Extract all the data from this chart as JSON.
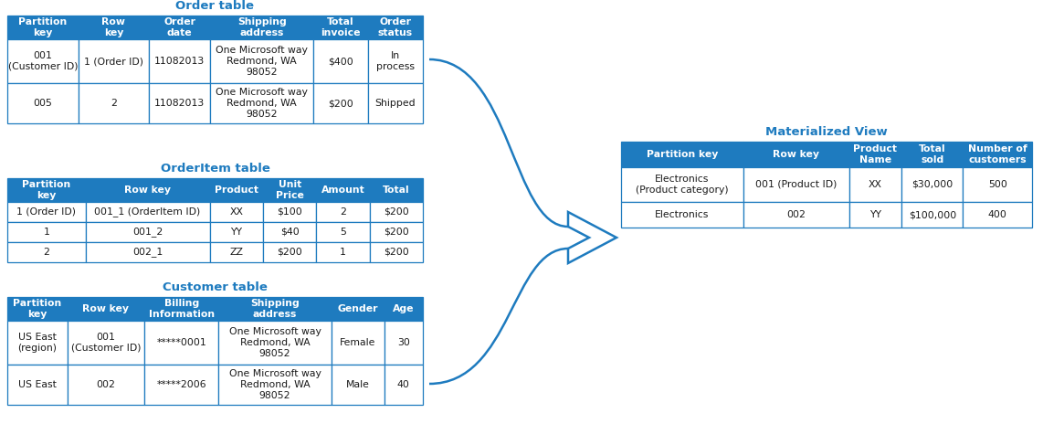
{
  "header_bg": "#1e7bbf",
  "header_text_color": "#ffffff",
  "cell_bg": "#ffffff",
  "cell_text_color": "#1a1a1a",
  "title_color": "#1e7bbf",
  "border_color": "#1e7bbf",
  "arrow_color": "#1e7bbf",
  "order_table_title": "Order table",
  "order_table_headers": [
    "Partition\nkey",
    "Row\nkey",
    "Order\ndate",
    "Shipping\naddress",
    "Total\ninvoice",
    "Order\nstatus"
  ],
  "order_table_rows": [
    [
      "001\n(Customer ID)",
      "1 (Order ID)",
      "11082013",
      "One Microsoft way\nRedmond, WA\n98052",
      "$400",
      "In\nprocess"
    ],
    [
      "005",
      "2",
      "11082013",
      "One Microsoft way\nRedmond, WA\n98052",
      "$200",
      "Shipped"
    ]
  ],
  "order_col_widths": [
    1.1,
    1.1,
    0.95,
    1.6,
    0.85,
    0.85
  ],
  "orderitem_table_title": "OrderItem table",
  "orderitem_table_headers": [
    "Partition\nkey",
    "Row key",
    "Product",
    "Unit\nPrice",
    "Amount",
    "Total"
  ],
  "orderitem_table_rows": [
    [
      "1 (Order ID)",
      "001_1 (OrderItem ID)",
      "XX",
      "$100",
      "2",
      "$200"
    ],
    [
      "1",
      "001_2",
      "YY",
      "$40",
      "5",
      "$200"
    ],
    [
      "2",
      "002_1",
      "ZZ",
      "$200",
      "1",
      "$200"
    ]
  ],
  "orderitem_col_widths": [
    1.1,
    1.75,
    0.75,
    0.75,
    0.75,
    0.75
  ],
  "customer_table_title": "Customer table",
  "customer_table_headers": [
    "Partition\nkey",
    "Row key",
    "Billing\nInformation",
    "Shipping\naddress",
    "Gender",
    "Age"
  ],
  "customer_table_rows": [
    [
      "US East\n(region)",
      "001\n(Customer ID)",
      "*****0001",
      "One Microsoft way\nRedmond, WA\n98052",
      "Female",
      "30"
    ],
    [
      "US East",
      "002",
      "*****2006",
      "One Microsoft way\nRedmond, WA\n98052",
      "Male",
      "40"
    ]
  ],
  "customer_col_widths": [
    0.85,
    1.1,
    1.05,
    1.6,
    0.75,
    0.55
  ],
  "mv_table_title": "Materialized View",
  "mv_table_headers": [
    "Partition key",
    "Row key",
    "Product\nName",
    "Total\nsold",
    "Number of\ncustomers"
  ],
  "mv_table_rows": [
    [
      "Electronics\n(Product category)",
      "001 (Product ID)",
      "XX",
      "$30,000",
      "500"
    ],
    [
      "Electronics",
      "002",
      "YY",
      "$100,000",
      "400"
    ]
  ],
  "mv_col_widths": [
    1.5,
    1.3,
    0.65,
    0.75,
    0.85
  ]
}
